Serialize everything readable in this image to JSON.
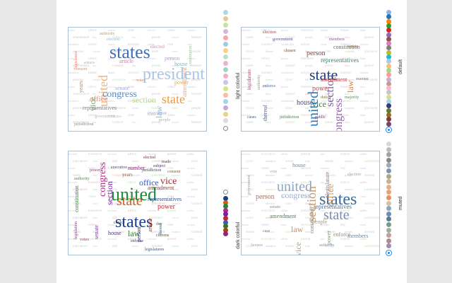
{
  "panels": [
    {
      "name": "light-colorful",
      "label": "light colorful",
      "words": [
        {
          "t": "states",
          "c": "#3f6fb5"
        },
        {
          "t": "president",
          "c": "#a9c6e8"
        },
        {
          "t": "united",
          "c": "#f2b37c"
        },
        {
          "t": "congress",
          "c": "#5a8fc9"
        },
        {
          "t": "state",
          "c": "#f29a38"
        },
        {
          "t": "section",
          "c": "#b4d98a"
        },
        {
          "t": "office",
          "c": "#e58d7d"
        },
        {
          "t": "vice",
          "c": "#6fa86c"
        },
        {
          "t": "law",
          "c": "#8fb5d8"
        },
        {
          "t": "representatives",
          "c": "#7c7c7c"
        },
        {
          "t": "article",
          "c": "#c88ab8"
        },
        {
          "t": "amendment",
          "c": "#e5a88a"
        },
        {
          "t": "power",
          "c": "#d8b24a"
        },
        {
          "t": "senate",
          "c": "#9fa8d8"
        },
        {
          "t": "house",
          "c": "#7fb9b4"
        },
        {
          "t": "person",
          "c": "#c4a0d4"
        },
        {
          "t": "years",
          "c": "#a68c78"
        },
        {
          "t": "jurisdiction",
          "c": "#888888"
        },
        {
          "t": "executive",
          "c": "#8aa0c8"
        },
        {
          "t": "votes",
          "c": "#b88a6a"
        },
        {
          "t": "elected",
          "c": "#d08fb8"
        },
        {
          "t": "legislature",
          "c": "#e07d74"
        },
        {
          "t": "constitution",
          "c": "#9bc39a"
        },
        {
          "t": "people",
          "c": "#b0b0b0"
        },
        {
          "t": "consent",
          "c": "#c79e7c"
        },
        {
          "t": "election",
          "c": "#9db8d8"
        },
        {
          "t": "authority",
          "c": "#b8a07c"
        },
        {
          "t": "enforce",
          "c": "#a0a0a0"
        },
        {
          "t": "number",
          "c": "#c0c0c0"
        },
        {
          "t": "government",
          "c": "#b8b8b8"
        }
      ]
    },
    {
      "name": "default",
      "label": "default",
      "words": [
        {
          "t": "states",
          "c": "#1f5aa6"
        },
        {
          "t": "united",
          "c": "#2b7bbf"
        },
        {
          "t": "state",
          "c": "#1a3f7a"
        },
        {
          "t": "section",
          "c": "#7e57a8"
        },
        {
          "t": "congress",
          "c": "#9c5bb4"
        },
        {
          "t": "vice",
          "c": "#3a7d3a"
        },
        {
          "t": "law",
          "c": "#e07b39"
        },
        {
          "t": "person",
          "c": "#8a3a3a"
        },
        {
          "t": "house",
          "c": "#4a4a8a"
        },
        {
          "t": "amendment",
          "c": "#b03a3a"
        },
        {
          "t": "representatives",
          "c": "#3a8a7a"
        },
        {
          "t": "constitution",
          "c": "#6a6a6a"
        },
        {
          "t": "power",
          "c": "#c24a5a"
        },
        {
          "t": "thereof",
          "c": "#5a5a9a"
        },
        {
          "t": "duties",
          "c": "#7a7a3a"
        },
        {
          "t": "senate",
          "c": "#9a6a3a"
        },
        {
          "t": "legislature",
          "c": "#aa4a7a"
        },
        {
          "t": "majority",
          "c": "#5a8a5a"
        },
        {
          "t": "members",
          "c": "#8a5a8a"
        },
        {
          "t": "enforce",
          "c": "#4a6a9a"
        },
        {
          "t": "authority",
          "c": "#9a9a9a"
        },
        {
          "t": "chosen",
          "c": "#7a5a3a"
        },
        {
          "t": "cases",
          "c": "#3a5a7a"
        },
        {
          "t": "public",
          "c": "#6a3a6a"
        },
        {
          "t": "election",
          "c": "#9a4a4a"
        },
        {
          "t": "jurisdiction",
          "c": "#4a7a4a"
        },
        {
          "t": "manner",
          "c": "#7a7a7a"
        },
        {
          "t": "government",
          "c": "#5a4a8a"
        }
      ]
    },
    {
      "name": "dark-colorful",
      "label": "dark colorful",
      "words": [
        {
          "t": "states",
          "c": "#1d3f8a"
        },
        {
          "t": "state",
          "c": "#d9581a"
        },
        {
          "t": "united",
          "c": "#1e8b3a"
        },
        {
          "t": "congress",
          "c": "#b0278a"
        },
        {
          "t": "section",
          "c": "#7a1fa0"
        },
        {
          "t": "office",
          "c": "#3b5ac0"
        },
        {
          "t": "vice",
          "c": "#c0262e"
        },
        {
          "t": "law",
          "c": "#2c7a2c"
        },
        {
          "t": "amendment",
          "c": "#a8401a"
        },
        {
          "t": "representatives",
          "c": "#2a4f9f"
        },
        {
          "t": "number",
          "c": "#8a2a7a"
        },
        {
          "t": "constitution",
          "c": "#3a8a3a"
        },
        {
          "t": "house",
          "c": "#5a2a9a"
        },
        {
          "t": "article",
          "c": "#b0402a"
        },
        {
          "t": "power",
          "c": "#c0303a"
        },
        {
          "t": "senate",
          "c": "#7a3aa0"
        },
        {
          "t": "person",
          "c": "#2a2a9a"
        },
        {
          "t": "years",
          "c": "#9a4a1a"
        },
        {
          "t": "jurisdiction",
          "c": "#4a4a4a"
        },
        {
          "t": "executive",
          "c": "#3a3a8a"
        },
        {
          "t": "legislation",
          "c": "#8a3a8a"
        },
        {
          "t": "thereof",
          "c": "#2a6a6a"
        },
        {
          "t": "votes",
          "c": "#aa2a4a"
        },
        {
          "t": "citizens",
          "c": "#5a5a2a"
        },
        {
          "t": "enforce",
          "c": "#6a2a6a"
        },
        {
          "t": "legislatures",
          "c": "#2a5a8a"
        },
        {
          "t": "consent",
          "c": "#8a5a2a"
        },
        {
          "t": "authority",
          "c": "#4a8a4a"
        },
        {
          "t": "elected",
          "c": "#7a2a2a"
        },
        {
          "t": "choice",
          "c": "#3a3a3a"
        },
        {
          "t": "powers",
          "c": "#9a3a6a"
        },
        {
          "t": "subject",
          "c": "#4a2a7a"
        },
        {
          "t": "day",
          "c": "#6a6a6a"
        },
        {
          "t": "made",
          "c": "#5a3a3a"
        }
      ]
    },
    {
      "name": "muted",
      "label": "muted",
      "words": [
        {
          "t": "states",
          "c": "#3e6a9a"
        },
        {
          "t": "united",
          "c": "#8aa7c6"
        },
        {
          "t": "state",
          "c": "#7a8fb0"
        },
        {
          "t": "section",
          "c": "#c99a6a"
        },
        {
          "t": "congress",
          "c": "#9ab0cf"
        },
        {
          "t": "office",
          "c": "#d7a06a"
        },
        {
          "t": "vice",
          "c": "#b0a08a"
        },
        {
          "t": "law",
          "c": "#c8906a"
        },
        {
          "t": "representatives",
          "c": "#5a7090"
        },
        {
          "t": "amendment",
          "c": "#6a7a6a"
        },
        {
          "t": "constitution",
          "c": "#8a8a9a"
        },
        {
          "t": "person",
          "c": "#a07a6a"
        },
        {
          "t": "power",
          "c": "#8a9a7a"
        },
        {
          "t": "house",
          "c": "#7a8a9a"
        },
        {
          "t": "people",
          "c": "#a09a8a"
        },
        {
          "t": "enforce",
          "c": "#9a8a7a"
        },
        {
          "t": "members",
          "c": "#6a8a9a"
        },
        {
          "t": "legislature",
          "c": "#9a7a8a"
        },
        {
          "t": "authority",
          "c": "#8a9a9a"
        },
        {
          "t": "case",
          "c": "#7a7a7a"
        },
        {
          "t": "houses",
          "c": "#a0a0a0"
        },
        {
          "t": "government",
          "c": "#9aa0a8"
        },
        {
          "t": "election",
          "c": "#b0a0a0"
        },
        {
          "t": "vote",
          "c": "#a8a8a8"
        },
        {
          "t": "senate",
          "c": "#8a8aa0"
        }
      ]
    }
  ],
  "filler": {
    "light-colorful": [
      "years",
      "office",
      "power",
      "state",
      "elected",
      "votes",
      "number",
      "amendment",
      "law",
      "consent",
      "day",
      "power",
      "senate",
      "thereof",
      "members",
      "house",
      "duties",
      "election",
      "public",
      "vice",
      "case",
      "persons",
      "chosen",
      "executive",
      "treaty",
      "held",
      "votes",
      "people"
    ],
    "default": [
      "election",
      "office",
      "power",
      "members",
      "senate",
      "house",
      "state",
      "votes",
      "laws",
      "subject",
      "people",
      "public",
      "days",
      "person",
      "chosen",
      "number",
      "jurisdiction",
      "article",
      "court",
      "manner",
      "treason",
      "office",
      "thereof",
      "taxes",
      "bill",
      "vote",
      "congress",
      "president"
    ],
    "dark-colorful": [
      "provide",
      "executive",
      "persons",
      "office",
      "citizens",
      "power",
      "public",
      "legislature",
      "year",
      "day",
      "made",
      "number",
      "choice",
      "laws",
      "senate",
      "votes",
      "house",
      "person",
      "state",
      "vote",
      "section",
      "states",
      "time",
      "congress",
      "elected",
      "president",
      "manner",
      "consent"
    ],
    "muted": [
      "persons",
      "executive",
      "office",
      "person",
      "law",
      "choice",
      "public",
      "years",
      "members",
      "house",
      "vote",
      "senate",
      "number",
      "jurisdiction",
      "power",
      "states",
      "state",
      "section",
      "manner",
      "day",
      "court",
      "duties",
      "election",
      "laws",
      "thereof",
      "citizens",
      "people",
      "elected"
    ]
  },
  "colors": {
    "page_bg": "#e7e7e7",
    "card_bg": "#ffffff",
    "panel_border": "#a9bfd6",
    "selected_ring": "#1e88e5"
  },
  "palettes": {
    "light-colorful": [
      "#a8d8ea",
      "#f4c38b",
      "#c7e3a3",
      "#d8b4e2",
      "#f7a6a6",
      "#a7c7e7",
      "#f6d38a",
      "#b7e4c7",
      "#e8b3d6",
      "#9fd5d1",
      "#f3b0c3",
      "#c6c6f0",
      "#d3e68f",
      "#f5c0a0",
      "#a2d4f0",
      "#c9a7d9",
      "#e4d38f",
      "#dcdcdc"
    ],
    "default": [
      "#8ab4e8",
      "#1f77b4",
      "#ff7f0e",
      "#2ca02c",
      "#d62728",
      "#9467bd",
      "#8c564b",
      "#e377c2",
      "#7f7f7f",
      "#bcbd22",
      "#17becf",
      "#aec7e8",
      "#ffbb78",
      "#98df8a",
      "#ff9896",
      "#c5b0d5",
      "#c49c94",
      "#f7b6d2",
      "#c7c7c7",
      "#dbdb8d",
      "#9edae5",
      "#393b79",
      "#637939",
      "#8c6d31",
      "#843c39",
      "#7b4173"
    ],
    "dark-colorful": [
      "#1d3f8a",
      "#d9581a",
      "#1e8b3a",
      "#b0278a",
      "#7a1fa0",
      "#c0262e",
      "#3b5ac0",
      "#2c7a2c",
      "#a8401a",
      "#8a2a7a"
    ],
    "muted": [
      "#d7d7d7",
      "#bcbcbc",
      "#a3a3a3",
      "#8a8a8a",
      "#9aa8b8",
      "#7f94ab",
      "#b0a48a",
      "#c9b08a",
      "#e0b08a",
      "#f0a070",
      "#e89060",
      "#d7c0a0",
      "#8aa7c6",
      "#6a8fb0",
      "#5a7a9a",
      "#7a9a8a",
      "#a0b0a0",
      "#c0a0a0",
      "#b08a8a",
      "#a08ab0"
    ]
  }
}
